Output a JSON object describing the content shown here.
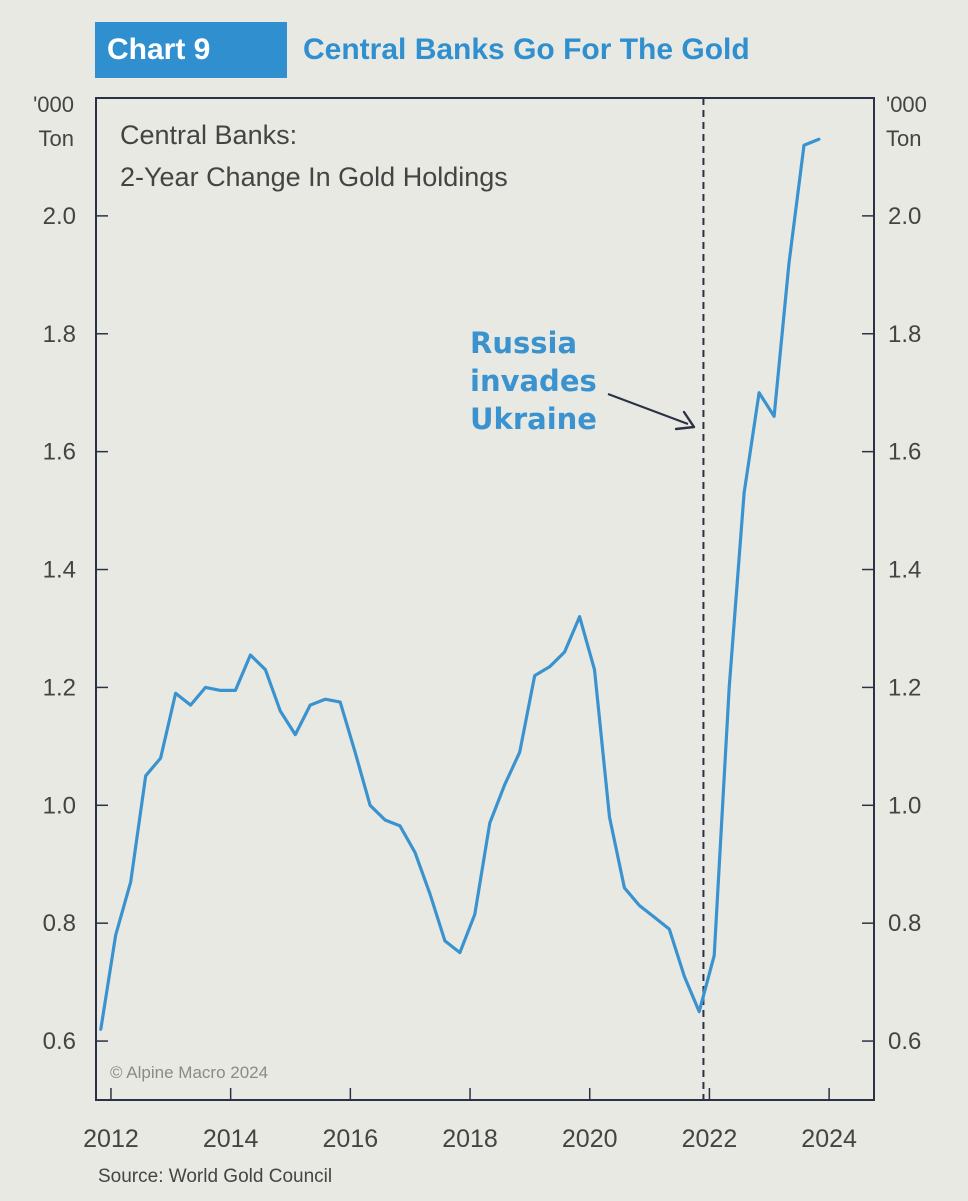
{
  "header": {
    "tag": "Chart 9",
    "title": "Central Banks Go For The Gold"
  },
  "source": "Source: World Gold Council",
  "copyright": "© Alpine Macro 2024",
  "colors": {
    "accent": "#2f8fcf",
    "line": "#3a93cf",
    "axis": "#2b3245",
    "background": "#e9e9e3"
  },
  "chart_data": {
    "type": "line",
    "title": "Central Banks: 2-Year Change In Gold Holdings",
    "title_lines": [
      "Central Banks:",
      "2-Year Change In Gold Holdings"
    ],
    "ylabel_left": [
      "'000",
      "Ton"
    ],
    "ylabel_right": [
      "'000",
      "Ton"
    ],
    "ylim": [
      0.5,
      2.2
    ],
    "yticks": [
      0.6,
      0.8,
      1.0,
      1.2,
      1.4,
      1.6,
      1.8,
      2.0
    ],
    "ytick_labels": [
      "0.6",
      "0.8",
      "1.0",
      "1.2",
      "1.4",
      "1.6",
      "1.8",
      "2.0"
    ],
    "xlim": [
      2011.75,
      2024.75
    ],
    "xticks": [
      2012,
      2014,
      2016,
      2018,
      2020,
      2022,
      2024
    ],
    "xtick_labels": [
      "2012",
      "2014",
      "2016",
      "2018",
      "2020",
      "2022",
      "2024"
    ],
    "series": [
      {
        "name": "2-Year Change In Gold Holdings",
        "x": [
          2011.83,
          2012.08,
          2012.33,
          2012.58,
          2012.83,
          2013.08,
          2013.33,
          2013.58,
          2013.83,
          2014.08,
          2014.33,
          2014.58,
          2014.83,
          2015.08,
          2015.33,
          2015.58,
          2015.83,
          2016.08,
          2016.33,
          2016.58,
          2016.83,
          2017.08,
          2017.33,
          2017.58,
          2017.83,
          2018.08,
          2018.33,
          2018.58,
          2018.83,
          2019.08,
          2019.33,
          2019.58,
          2019.83,
          2020.08,
          2020.33,
          2020.58,
          2020.83,
          2021.08,
          2021.33,
          2021.58,
          2021.83,
          2022.08,
          2022.33,
          2022.58,
          2022.83,
          2023.08,
          2023.33,
          2023.58,
          2023.83
        ],
        "values": [
          0.62,
          0.78,
          0.87,
          1.05,
          1.08,
          1.19,
          1.17,
          1.2,
          1.195,
          1.195,
          1.255,
          1.23,
          1.16,
          1.12,
          1.17,
          1.18,
          1.175,
          1.09,
          1.0,
          0.975,
          0.965,
          0.92,
          0.85,
          0.77,
          0.75,
          0.815,
          0.97,
          1.035,
          1.09,
          1.22,
          1.235,
          1.26,
          1.32,
          1.23,
          0.98,
          0.86,
          0.83,
          0.81,
          0.79,
          0.71,
          0.65,
          0.745,
          1.2,
          1.53,
          1.7,
          1.66,
          1.92,
          2.12,
          2.13
        ]
      }
    ],
    "annotations": [
      {
        "text_lines": [
          "Russia",
          "invades",
          "Ukraine"
        ],
        "x": 2021.9,
        "style": "dashed-vertical-line"
      }
    ]
  }
}
